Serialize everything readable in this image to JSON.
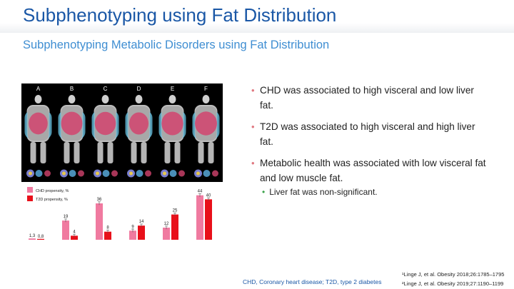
{
  "slide": {
    "title": "Subphenotyping using Fat Distribution",
    "subtitle": "Subphenotyping Metabolic Disorders using Fat Distribution"
  },
  "figure": {
    "panel_labels": [
      "A",
      "B",
      "C",
      "D",
      "E",
      "F"
    ]
  },
  "bullets": [
    "CHD was associated to high visceral and low liver fat.",
    "T2D was associated to high visceral and high liver fat.",
    "Metabolic health was associated with low visceral fat and low muscle fat."
  ],
  "sub_bullet": "Liver fat was non-significant.",
  "chart_data": {
    "type": "bar",
    "categories": [
      "A",
      "B",
      "C",
      "D",
      "E",
      "F"
    ],
    "series": [
      {
        "name": "CHD propensity, %",
        "color": "#f07aa0",
        "values": [
          1.3,
          19,
          36,
          9,
          12,
          44
        ],
        "labels": [
          "1,3",
          "19",
          "36",
          "9",
          "12",
          "44"
        ]
      },
      {
        "name": "T2D propensity, %",
        "color": "#e8101a",
        "values": [
          0.8,
          4,
          8,
          14,
          25,
          40
        ],
        "labels": [
          "0,8",
          "4",
          "8",
          "14",
          "25",
          "40"
        ]
      }
    ],
    "ylim": [
      0,
      48
    ]
  },
  "footnote": "CHD, Coronary heart disease; T2D, type 2 diabetes",
  "references": [
    "¹Linge J, et al. Obesity 2018;26:1785–1795",
    "²Linge J, et al. Obesity 2019;27:1190–1199"
  ]
}
